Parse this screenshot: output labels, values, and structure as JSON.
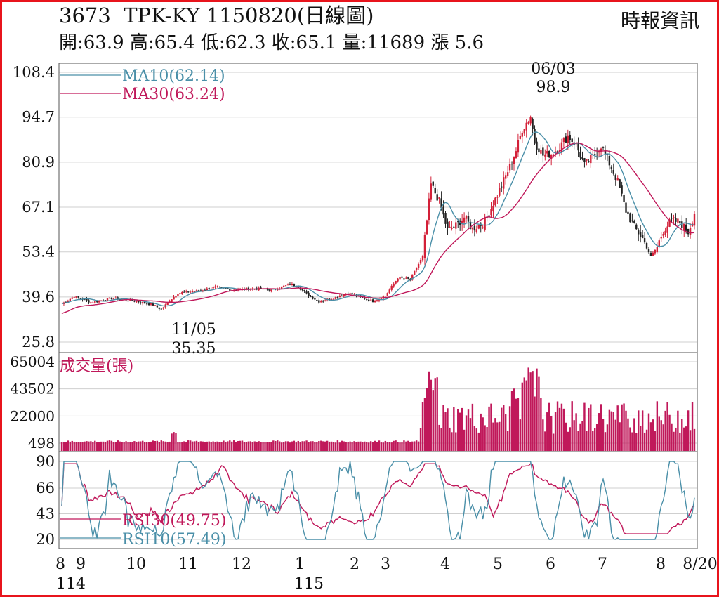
{
  "header": {
    "title": "3673  TPK-KY 1150820(日線圖)",
    "summary": "開:63.9 高:65.4 低:62.3 收:65.1 量:11689 漲 5.6",
    "source": "時報資訊"
  },
  "colors": {
    "up": "#d32038",
    "down": "#222222",
    "ma10": "#4a8fa8",
    "ma30": "#c0185a",
    "volume": "#c0185a",
    "rsi30": "#c0185a",
    "rsi10": "#4a8fa8",
    "frame": "#e8141c"
  },
  "chart_data": [
    {
      "type": "candlestick",
      "title": "3673  TPK-KY 1150820(日線圖)",
      "ylim": [
        25.8,
        108.4
      ],
      "yticks": [
        "108.4",
        "94.7",
        "80.9",
        "67.1",
        "53.4",
        "39.6",
        "25.8"
      ],
      "legend": [
        "MA10(62.14)",
        "MA30(63.24)"
      ],
      "annotations": [
        {
          "date": "06/03",
          "value": "98.9"
        },
        {
          "date": "11/05",
          "value": "35.35"
        }
      ],
      "last": {
        "open": 63.9,
        "high": 65.4,
        "low": 62.3,
        "close": 65.1,
        "volume": 11689,
        "change": 5.6
      }
    },
    {
      "type": "bar",
      "title": "成交量(張)",
      "ylim": [
        498,
        65004
      ],
      "yticks": [
        "65004",
        "43502",
        "22000",
        "498"
      ]
    },
    {
      "type": "line",
      "ylim": [
        20,
        90
      ],
      "yticks": [
        "90",
        "66",
        "43",
        "20"
      ],
      "legend": [
        "RSI30(49.75)",
        "RSI10(57.49)"
      ]
    }
  ],
  "x_axis": {
    "month_labels": [
      "8",
      "9",
      "10",
      "11",
      "12",
      "1",
      "2",
      "3",
      "4",
      "5",
      "6",
      "7",
      "8",
      "8/20"
    ],
    "year_labels": [
      "114",
      "115"
    ]
  }
}
